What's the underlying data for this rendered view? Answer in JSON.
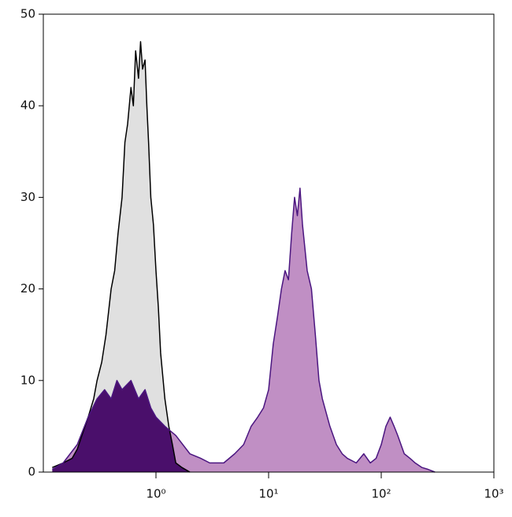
{
  "chart_data": {
    "type": "area",
    "xscale": "log",
    "xlim": [
      0.1,
      1000
    ],
    "ylim": [
      0,
      50
    ],
    "xticks": [
      {
        "value": 1,
        "label": "10⁰"
      },
      {
        "value": 10,
        "label": "10¹"
      },
      {
        "value": 100,
        "label": "10²"
      },
      {
        "value": 1000,
        "label": "10³"
      }
    ],
    "yticks": [
      0,
      10,
      20,
      30,
      40,
      50
    ],
    "overlap_color": "#4a0f6b",
    "series": [
      {
        "color": "#000000",
        "fill": "#e0e0e0",
        "x": [
          0.12,
          0.15,
          0.18,
          0.2,
          0.22,
          0.25,
          0.28,
          0.3,
          0.33,
          0.36,
          0.4,
          0.43,
          0.46,
          0.5,
          0.53,
          0.56,
          0.6,
          0.63,
          0.66,
          0.7,
          0.73,
          0.76,
          0.8,
          0.83,
          0.86,
          0.9,
          0.95,
          1.0,
          1.05,
          1.1,
          1.2,
          1.3,
          1.4,
          1.5,
          1.7,
          2.0
        ],
        "values": [
          0.5,
          1,
          1.5,
          2.5,
          4,
          6,
          8,
          10,
          12,
          15,
          20,
          22,
          26,
          30,
          36,
          38,
          42,
          40,
          46,
          43,
          47,
          44,
          45,
          40,
          36,
          30,
          27,
          22,
          18,
          13,
          8,
          5,
          3,
          1,
          0.5,
          0
        ]
      },
      {
        "color": "#4b1680",
        "fill": "#c08fc4",
        "x": [
          0.12,
          0.15,
          0.2,
          0.25,
          0.3,
          0.35,
          0.4,
          0.45,
          0.5,
          0.6,
          0.7,
          0.8,
          0.9,
          1.0,
          1.2,
          1.5,
          2,
          2.5,
          3,
          4,
          5,
          6,
          7,
          8,
          9,
          10,
          11,
          12,
          13,
          14,
          15,
          16,
          17,
          18,
          19,
          20,
          22,
          24,
          26,
          28,
          30,
          35,
          40,
          45,
          50,
          60,
          70,
          80,
          90,
          100,
          110,
          120,
          130,
          140,
          160,
          180,
          200,
          230,
          260,
          300
        ],
        "values": [
          0.3,
          1,
          3,
          6,
          8,
          9,
          8,
          10,
          9,
          10,
          8,
          9,
          7,
          6,
          5,
          4,
          2,
          1.5,
          1,
          1,
          2,
          3,
          5,
          6,
          7,
          9,
          14,
          17,
          20,
          22,
          21,
          26,
          30,
          28,
          31,
          27,
          22,
          20,
          15,
          10,
          8,
          5,
          3,
          2,
          1.5,
          1,
          2,
          1,
          1.5,
          3,
          5,
          6,
          5,
          4,
          2,
          1.5,
          1,
          0.5,
          0.3,
          0
        ]
      }
    ]
  }
}
